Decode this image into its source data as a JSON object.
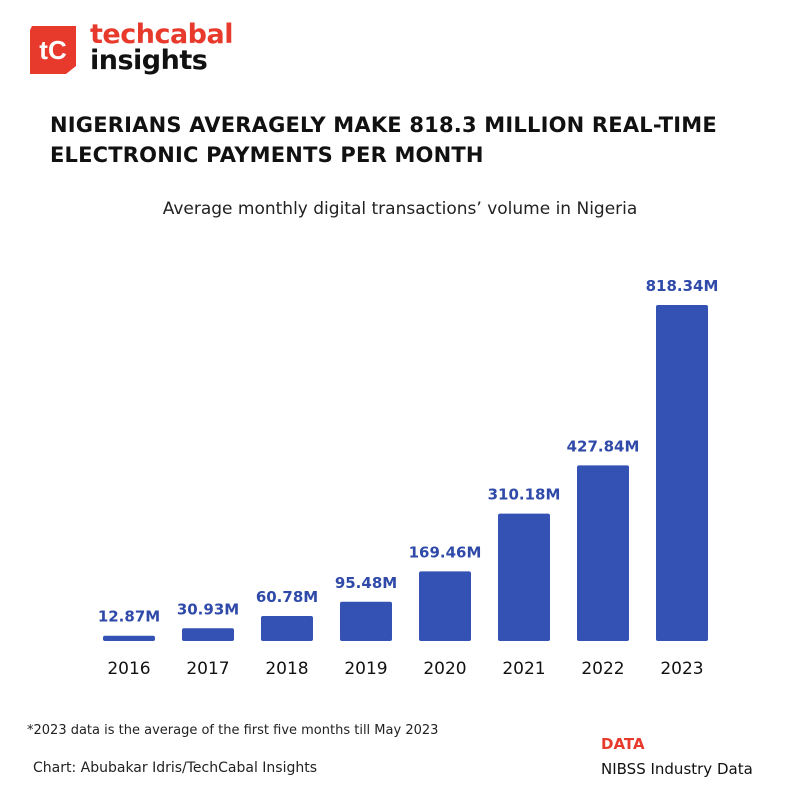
{
  "brand": {
    "line1": "techcabal",
    "line2": "insights",
    "mark_letters": "tC",
    "accent_color": "#e83a2c",
    "logo_icon": "techcabal-logo-icon"
  },
  "headline": "NIGERIANS AVERAGELY MAKE 818.3 MILLION REAL-TIME ELECTRONIC PAYMENTS PER MONTH",
  "footer": {
    "footnote": "*2023 data is the average of the first five months till May 2023",
    "credit": "Chart: Abubakar Idris/TechCabal Insights",
    "data_heading": "DATA",
    "data_source": "NIBSS Industry Data"
  },
  "chart_data": {
    "type": "bar",
    "title": "Average monthly digital transactions’ volume in Nigeria",
    "categories": [
      "2016",
      "2017",
      "2018",
      "2019",
      "2020",
      "2021",
      "2022",
      "2023"
    ],
    "values": [
      12.87,
      30.93,
      60.78,
      95.48,
      169.46,
      310.18,
      427.84,
      818.34
    ],
    "value_labels": [
      "12.87M",
      "30.93M",
      "60.78M",
      "95.48M",
      "169.46M",
      "310.18M",
      "427.84M",
      "818.34M"
    ],
    "ylim": [
      0,
      818.34
    ],
    "bar_color": "#3452b4",
    "label_color": "#2f4aa8",
    "grid": false,
    "legend": "none"
  }
}
